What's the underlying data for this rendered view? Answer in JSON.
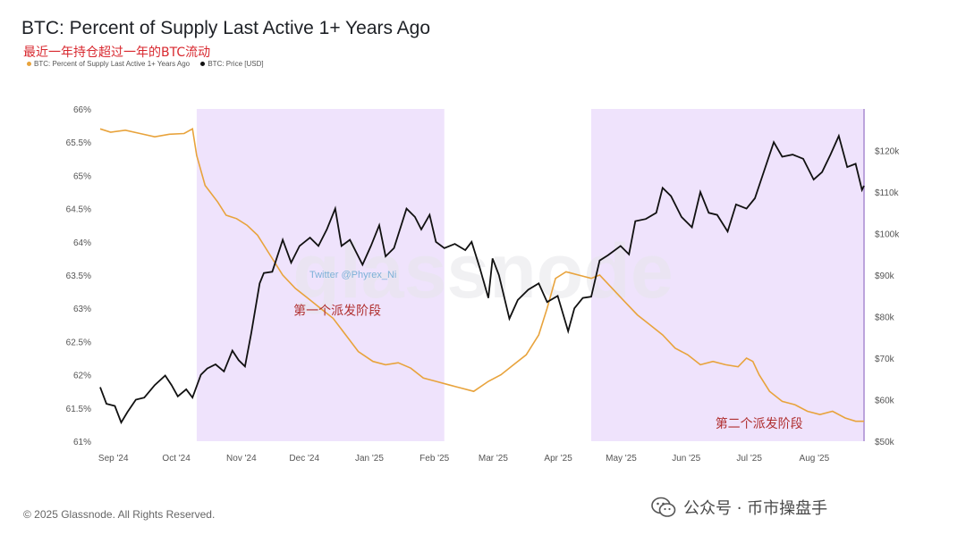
{
  "title": "BTC: Percent of Supply Last Active 1+ Years Ago",
  "subtitle": "最近一年持仓超过一年的BTC流动",
  "legend": [
    {
      "label": "BTC: Percent of Supply Last Active 1+ Years Ago",
      "color": "#e8a33c"
    },
    {
      "label": "BTC: Price [USD]",
      "color": "#111111"
    }
  ],
  "footer": "© 2025 Glassnode. All Rights Reserved.",
  "wechat_label": "公众号 · 币市操盘手",
  "watermark": "glassnode",
  "watermark_small": "Twitter @Phyrex_Ni",
  "colors": {
    "supply": "#e8a33c",
    "price": "#111111",
    "shade": "#ead9fb",
    "axis": "#a98bd1"
  },
  "chart_data": {
    "type": "line",
    "x_labels": [
      "Sep '24",
      "Oct '24",
      "Nov '24",
      "Dec '24",
      "Jan '25",
      "Feb '25",
      "Mar '25",
      "Apr '25",
      "May '25",
      "Jun '25",
      "Jul '25",
      "Aug '25"
    ],
    "y_left_ticks": [
      "66%",
      "65.5%",
      "65%",
      "64.5%",
      "64%",
      "63.5%",
      "63%",
      "62.5%",
      "62%",
      "61.5%",
      "61%"
    ],
    "y_right_ticks": [
      "$120k",
      "$110k",
      "$100k",
      "$90k",
      "$80k",
      "$70k",
      "$60k",
      "$50k"
    ],
    "y_left_range": [
      61,
      66
    ],
    "y_right_range": [
      50000,
      130000
    ],
    "x_range": [
      "2024-08-27",
      "2025-08-26"
    ],
    "shaded_periods": [
      [
        "2024-10-12",
        "2025-02-07"
      ],
      [
        "2025-04-18",
        "2025-08-26"
      ]
    ],
    "annotations": [
      {
        "text": "第一个派发阶段",
        "date": "2024-12-18",
        "value": 62.9
      },
      {
        "text": "第二个派发阶段",
        "date": "2025-07-07",
        "value": 61.2
      }
    ],
    "series": [
      {
        "name": "BTC: Percent of Supply Last Active 1+ Years Ago",
        "axis": "left",
        "points": [
          [
            "2024-08-27",
            65.7
          ],
          [
            "2024-09-01",
            65.65
          ],
          [
            "2024-09-08",
            65.68
          ],
          [
            "2024-09-15",
            65.63
          ],
          [
            "2024-09-22",
            65.58
          ],
          [
            "2024-09-29",
            65.62
          ],
          [
            "2024-10-06",
            65.63
          ],
          [
            "2024-10-10",
            65.7
          ],
          [
            "2024-10-12",
            65.3
          ],
          [
            "2024-10-16",
            64.85
          ],
          [
            "2024-10-22",
            64.6
          ],
          [
            "2024-10-26",
            64.4
          ],
          [
            "2024-10-31",
            64.35
          ],
          [
            "2024-11-05",
            64.25
          ],
          [
            "2024-11-10",
            64.1
          ],
          [
            "2024-11-15",
            63.85
          ],
          [
            "2024-11-22",
            63.5
          ],
          [
            "2024-11-28",
            63.3
          ],
          [
            "2024-12-04",
            63.15
          ],
          [
            "2024-12-10",
            63.0
          ],
          [
            "2024-12-16",
            62.85
          ],
          [
            "2024-12-22",
            62.6
          ],
          [
            "2024-12-28",
            62.35
          ],
          [
            "2025-01-04",
            62.2
          ],
          [
            "2025-01-10",
            62.15
          ],
          [
            "2025-01-16",
            62.18
          ],
          [
            "2025-01-22",
            62.1
          ],
          [
            "2025-01-28",
            61.95
          ],
          [
            "2025-02-03",
            61.9
          ],
          [
            "2025-02-09",
            61.85
          ],
          [
            "2025-02-15",
            61.8
          ],
          [
            "2025-02-21",
            61.75
          ],
          [
            "2025-02-28",
            61.9
          ],
          [
            "2025-03-06",
            62.0
          ],
          [
            "2025-03-12",
            62.15
          ],
          [
            "2025-03-18",
            62.3
          ],
          [
            "2025-03-24",
            62.6
          ],
          [
            "2025-03-28",
            63.0
          ],
          [
            "2025-04-01",
            63.45
          ],
          [
            "2025-04-06",
            63.55
          ],
          [
            "2025-04-12",
            63.5
          ],
          [
            "2025-04-18",
            63.45
          ],
          [
            "2025-04-22",
            63.5
          ],
          [
            "2025-04-28",
            63.3
          ],
          [
            "2025-05-04",
            63.1
          ],
          [
            "2025-05-10",
            62.9
          ],
          [
            "2025-05-16",
            62.75
          ],
          [
            "2025-05-22",
            62.6
          ],
          [
            "2025-05-28",
            62.4
          ],
          [
            "2025-06-03",
            62.3
          ],
          [
            "2025-06-09",
            62.15
          ],
          [
            "2025-06-15",
            62.2
          ],
          [
            "2025-06-21",
            62.15
          ],
          [
            "2025-06-27",
            62.12
          ],
          [
            "2025-07-01",
            62.25
          ],
          [
            "2025-07-04",
            62.2
          ],
          [
            "2025-07-07",
            62.0
          ],
          [
            "2025-07-12",
            61.75
          ],
          [
            "2025-07-18",
            61.6
          ],
          [
            "2025-07-24",
            61.55
          ],
          [
            "2025-07-30",
            61.45
          ],
          [
            "2025-08-05",
            61.4
          ],
          [
            "2025-08-11",
            61.45
          ],
          [
            "2025-08-17",
            61.35
          ],
          [
            "2025-08-22",
            61.3
          ],
          [
            "2025-08-26",
            61.3
          ]
        ]
      },
      {
        "name": "BTC: Price [USD]",
        "axis": "right",
        "points": [
          [
            "2024-08-27",
            63000
          ],
          [
            "2024-08-30",
            59000
          ],
          [
            "2024-09-03",
            58500
          ],
          [
            "2024-09-06",
            54500
          ],
          [
            "2024-09-09",
            57000
          ],
          [
            "2024-09-13",
            60000
          ],
          [
            "2024-09-17",
            60500
          ],
          [
            "2024-09-22",
            63500
          ],
          [
            "2024-09-27",
            65800
          ],
          [
            "2024-09-30",
            63500
          ],
          [
            "2024-10-03",
            60800
          ],
          [
            "2024-10-07",
            62500
          ],
          [
            "2024-10-10",
            60500
          ],
          [
            "2024-10-14",
            66000
          ],
          [
            "2024-10-17",
            67500
          ],
          [
            "2024-10-21",
            68500
          ],
          [
            "2024-10-25",
            66800
          ],
          [
            "2024-10-29",
            71800
          ],
          [
            "2024-11-01",
            69500
          ],
          [
            "2024-11-04",
            68000
          ],
          [
            "2024-11-07",
            76000
          ],
          [
            "2024-11-11",
            88000
          ],
          [
            "2024-11-13",
            90500
          ],
          [
            "2024-11-17",
            90800
          ],
          [
            "2024-11-22",
            98500
          ],
          [
            "2024-11-26",
            93000
          ],
          [
            "2024-11-30",
            97000
          ],
          [
            "2024-12-05",
            99000
          ],
          [
            "2024-12-09",
            97000
          ],
          [
            "2024-12-13",
            101000
          ],
          [
            "2024-12-17",
            106000
          ],
          [
            "2024-12-20",
            97000
          ],
          [
            "2024-12-24",
            98500
          ],
          [
            "2024-12-30",
            92500
          ],
          [
            "2025-01-03",
            97000
          ],
          [
            "2025-01-07",
            102000
          ],
          [
            "2025-01-10",
            94500
          ],
          [
            "2025-01-14",
            96500
          ],
          [
            "2025-01-20",
            106000
          ],
          [
            "2025-01-24",
            104000
          ],
          [
            "2025-01-27",
            101000
          ],
          [
            "2025-01-31",
            104500
          ],
          [
            "2025-02-03",
            98000
          ],
          [
            "2025-02-07",
            96500
          ],
          [
            "2025-02-12",
            97500
          ],
          [
            "2025-02-17",
            96000
          ],
          [
            "2025-02-20",
            98000
          ],
          [
            "2025-02-24",
            91500
          ],
          [
            "2025-02-28",
            84500
          ],
          [
            "2025-03-02",
            94000
          ],
          [
            "2025-03-05",
            90000
          ],
          [
            "2025-03-10",
            79500
          ],
          [
            "2025-03-14",
            84000
          ],
          [
            "2025-03-19",
            86500
          ],
          [
            "2025-03-24",
            88000
          ],
          [
            "2025-03-28",
            83500
          ],
          [
            "2025-04-02",
            85000
          ],
          [
            "2025-04-07",
            76500
          ],
          [
            "2025-04-10",
            82000
          ],
          [
            "2025-04-14",
            84500
          ],
          [
            "2025-04-18",
            84800
          ],
          [
            "2025-04-22",
            93500
          ],
          [
            "2025-04-26",
            94800
          ],
          [
            "2025-05-02",
            97000
          ],
          [
            "2025-05-06",
            95000
          ],
          [
            "2025-05-09",
            103000
          ],
          [
            "2025-05-14",
            103500
          ],
          [
            "2025-05-19",
            105000
          ],
          [
            "2025-05-22",
            111000
          ],
          [
            "2025-05-26",
            109000
          ],
          [
            "2025-05-31",
            104000
          ],
          [
            "2025-06-05",
            101500
          ],
          [
            "2025-06-09",
            110000
          ],
          [
            "2025-06-13",
            105000
          ],
          [
            "2025-06-17",
            104500
          ],
          [
            "2025-06-22",
            100500
          ],
          [
            "2025-06-26",
            107000
          ],
          [
            "2025-07-01",
            106000
          ],
          [
            "2025-07-05",
            108500
          ],
          [
            "2025-07-10",
            116000
          ],
          [
            "2025-07-14",
            122000
          ],
          [
            "2025-07-18",
            118500
          ],
          [
            "2025-07-23",
            119000
          ],
          [
            "2025-07-28",
            118000
          ],
          [
            "2025-08-02",
            113000
          ],
          [
            "2025-08-06",
            114800
          ],
          [
            "2025-08-10",
            119000
          ],
          [
            "2025-08-14",
            123500
          ],
          [
            "2025-08-18",
            116000
          ],
          [
            "2025-08-22",
            116800
          ],
          [
            "2025-08-25",
            110500
          ],
          [
            "2025-08-26",
            111500
          ]
        ]
      }
    ]
  }
}
